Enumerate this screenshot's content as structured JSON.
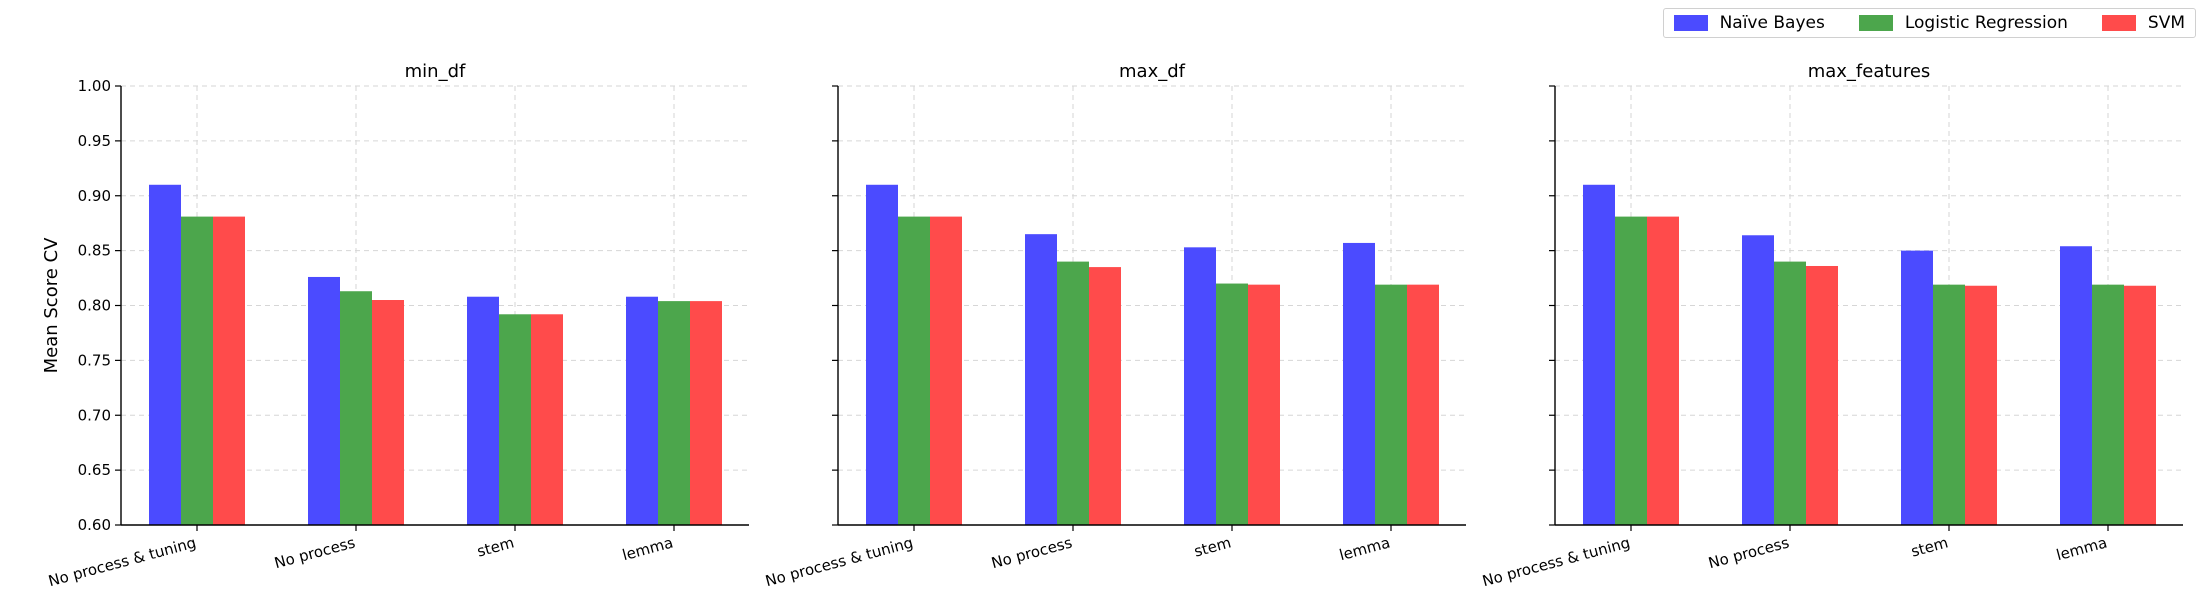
{
  "chart_data": {
    "type": "bar",
    "ylabel": "Mean Score CV",
    "ylim": [
      0.6,
      1.0
    ],
    "yticks": [
      "0.60",
      "0.65",
      "0.70",
      "0.75",
      "0.80",
      "0.85",
      "0.90",
      "0.95",
      "1.00"
    ],
    "categories": [
      "No process & tuning",
      "No process",
      "stem",
      "lemma"
    ],
    "grid": true,
    "legend_position": "top-right",
    "series_meta": [
      {
        "name": "Naïve Bayes",
        "color": "#4b4bff"
      },
      {
        "name": "Logistic Regression",
        "color": "#4ca64c"
      },
      {
        "name": "SVM",
        "color": "#ff4b4b"
      }
    ],
    "panels": [
      {
        "title": "min_df",
        "series": [
          {
            "name": "Naïve Bayes",
            "values": [
              0.91,
              0.826,
              0.808,
              0.808
            ]
          },
          {
            "name": "Logistic Regression",
            "values": [
              0.881,
              0.813,
              0.792,
              0.804
            ]
          },
          {
            "name": "SVM",
            "values": [
              0.881,
              0.805,
              0.792,
              0.804
            ]
          }
        ]
      },
      {
        "title": "max_df",
        "series": [
          {
            "name": "Naïve Bayes",
            "values": [
              0.91,
              0.865,
              0.853,
              0.857
            ]
          },
          {
            "name": "Logistic Regression",
            "values": [
              0.881,
              0.84,
              0.82,
              0.819
            ]
          },
          {
            "name": "SVM",
            "values": [
              0.881,
              0.835,
              0.819,
              0.819
            ]
          }
        ]
      },
      {
        "title": "max_features",
        "series": [
          {
            "name": "Naïve Bayes",
            "values": [
              0.91,
              0.864,
              0.85,
              0.854
            ]
          },
          {
            "name": "Logistic Regression",
            "values": [
              0.881,
              0.84,
              0.819,
              0.819
            ]
          },
          {
            "name": "SVM",
            "values": [
              0.881,
              0.836,
              0.818,
              0.818
            ]
          }
        ]
      }
    ]
  }
}
